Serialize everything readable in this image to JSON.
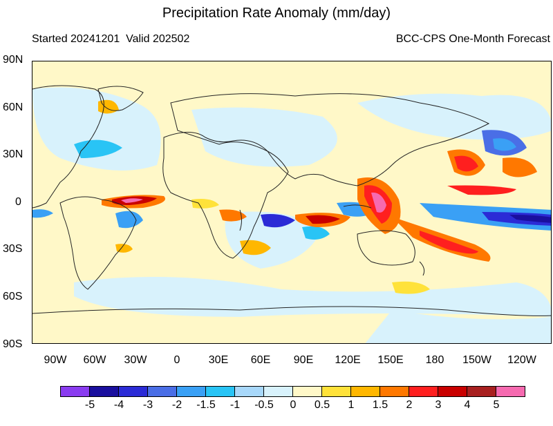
{
  "header": {
    "title": "Precipitation Rate Anomaly (mm/day)",
    "left_subtitle": "Started 20241201  Valid 202502",
    "right_subtitle": "BCC-CPS One-Month Forecast"
  },
  "axes": {
    "y_labels": [
      "90N",
      "60N",
      "30N",
      "0",
      "30S",
      "60S",
      "90S"
    ],
    "x_labels": [
      "90W",
      "60W",
      "30W",
      "0",
      "30E",
      "60E",
      "90E",
      "120E",
      "150E",
      "180",
      "150W",
      "120W"
    ]
  },
  "colorbar": {
    "colors": [
      "#8a3cf0",
      "#1a0f9e",
      "#2b2bd6",
      "#4a6ee6",
      "#3aa0f5",
      "#29c4f5",
      "#a8d8fa",
      "#d8f2fc",
      "#fff8c8",
      "#ffe23a",
      "#ffb700",
      "#ff7800",
      "#ff1f1f",
      "#c90000",
      "#a82020",
      "#f66ab0"
    ],
    "labels": [
      "-5",
      "-4",
      "-3",
      "-2",
      "-1.5",
      "-1",
      "-0.5",
      "0",
      "0.5",
      "1",
      "1.5",
      "2",
      "3",
      "4",
      "5"
    ]
  },
  "colors": {
    "land_outline": "#222222",
    "background_positive_small": "#fff8c8",
    "background_negative_small": "#d8f2fc"
  }
}
